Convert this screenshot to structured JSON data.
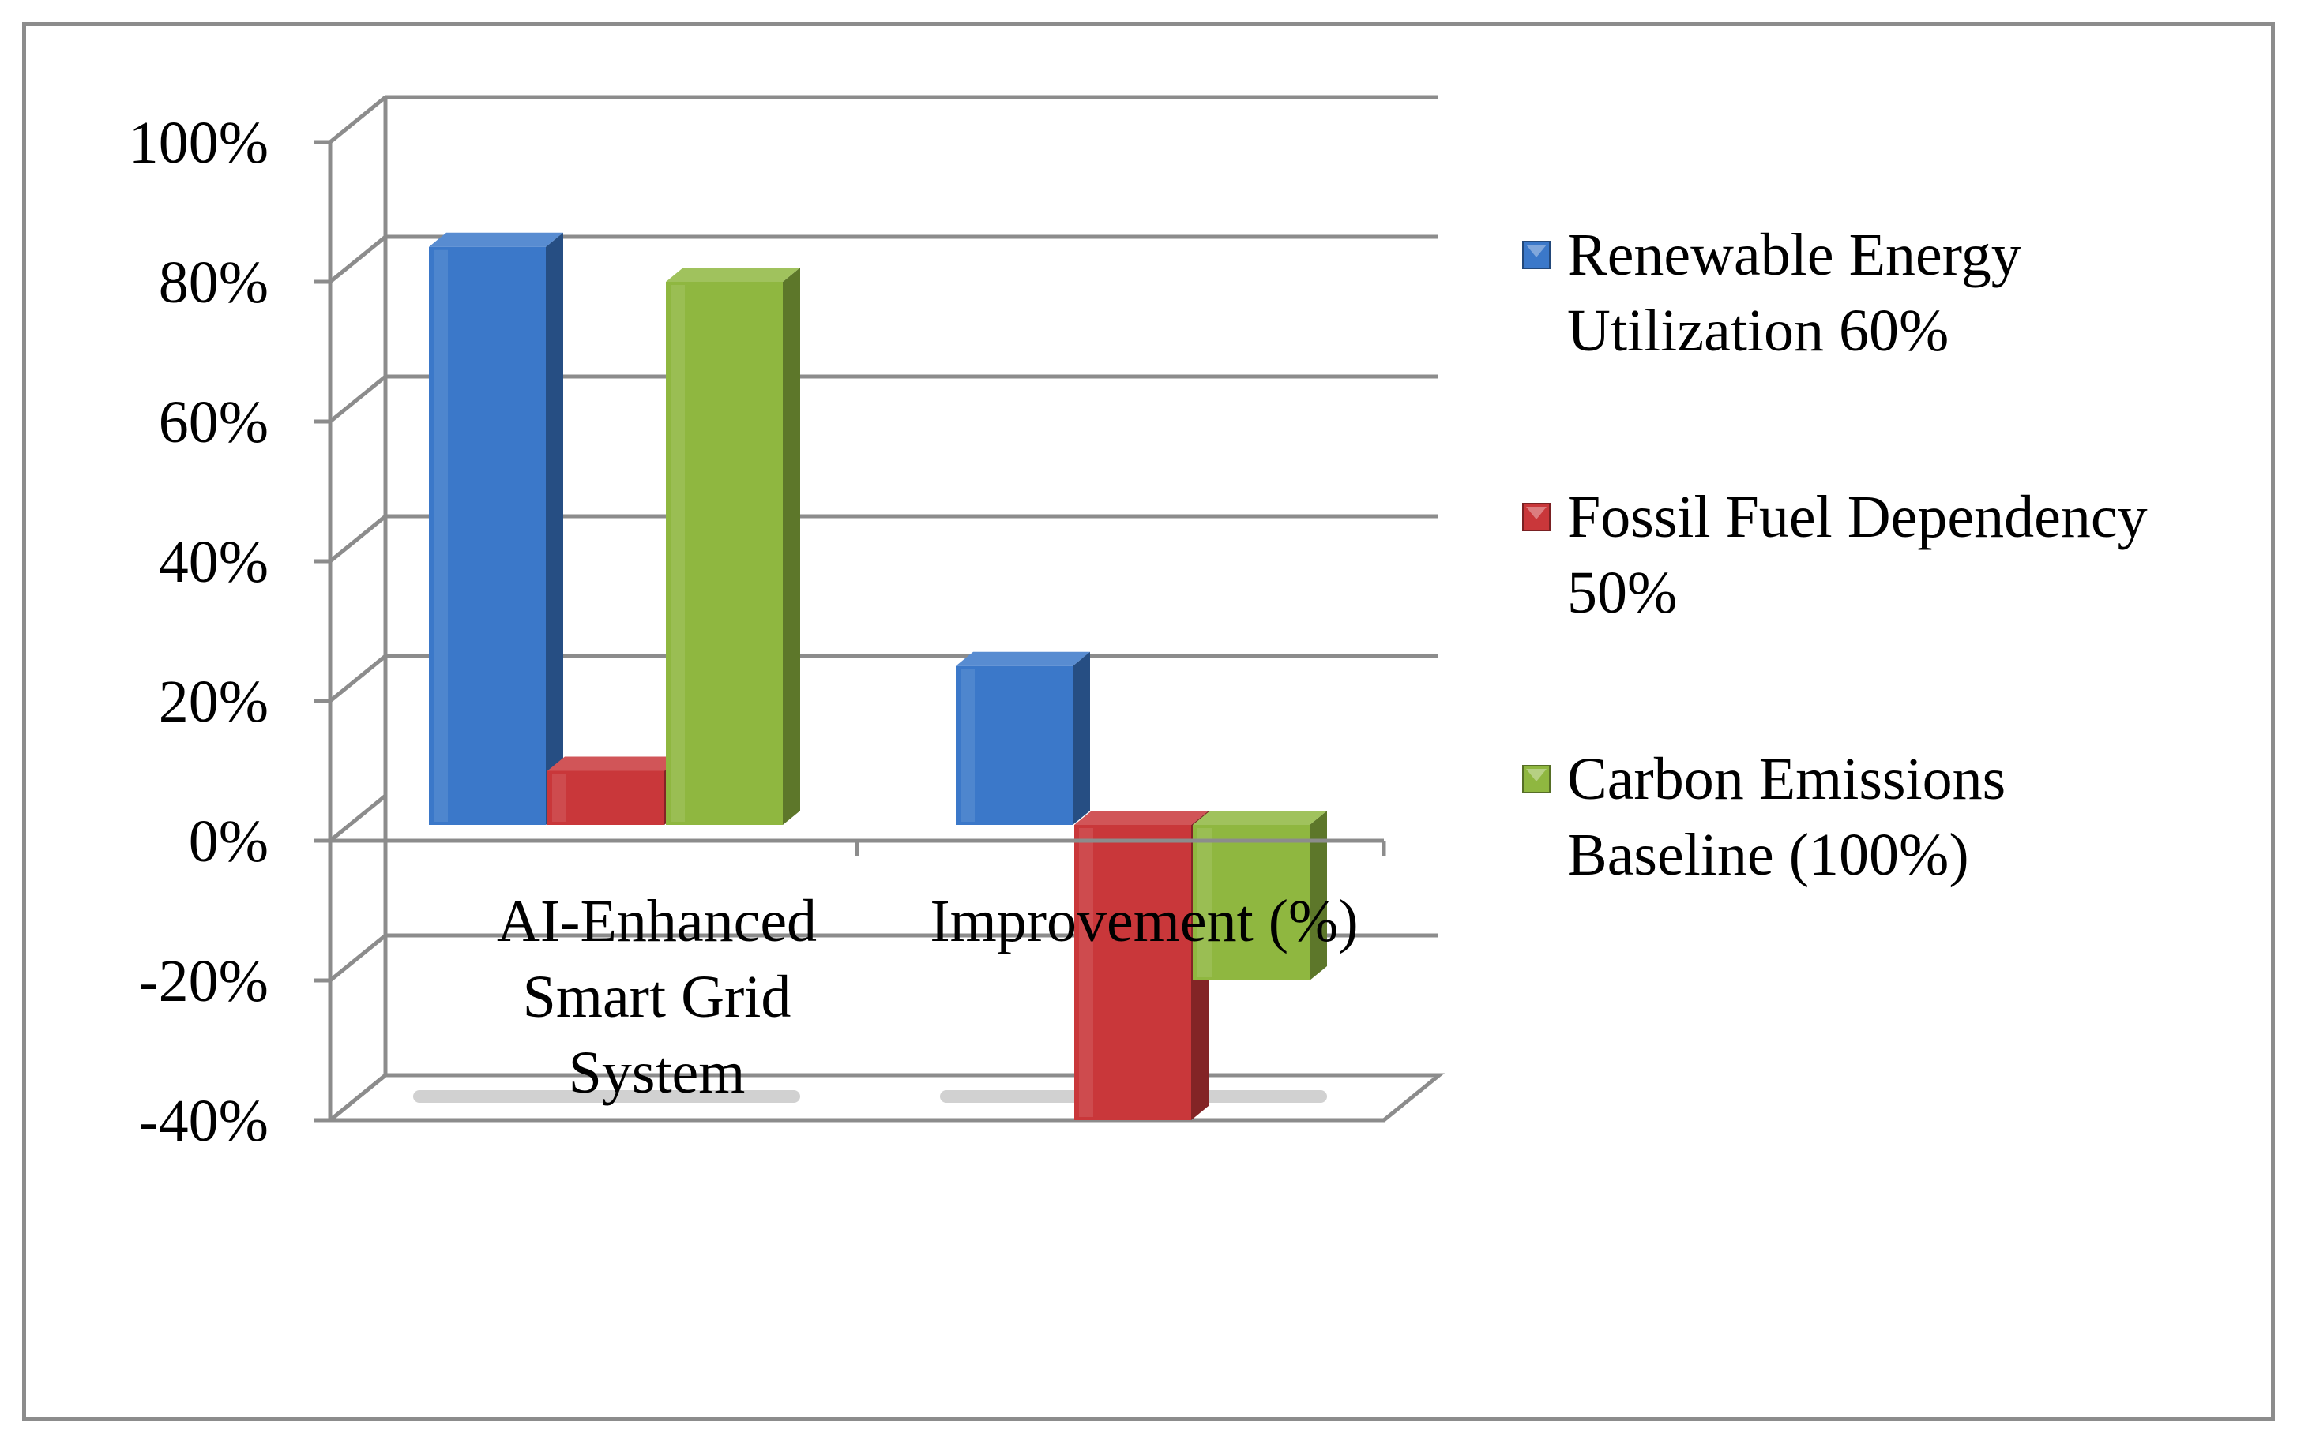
{
  "chart_data": {
    "type": "bar",
    "style": "3d-clustered-column",
    "title": "",
    "xlabel": "",
    "ylabel": "",
    "categories": [
      [
        "AI-Enhanced",
        "Smart Grid",
        "System"
      ],
      [
        "Improvement (%)"
      ]
    ],
    "series": [
      {
        "name": [
          "Renewable Energy",
          "Utilization 60%"
        ],
        "color": "#3b78c9",
        "values": [
          85,
          25
        ]
      },
      {
        "name": [
          "Fossil Fuel Dependency",
          "50%"
        ],
        "color": "#c9373a",
        "values": [
          10,
          -40
        ]
      },
      {
        "name": [
          "Carbon Emissions",
          "Baseline (100%)"
        ],
        "color": "#8fb740",
        "values": [
          80,
          -20
        ]
      }
    ],
    "ylim": [
      -40,
      100
    ],
    "yticks": [
      -40,
      -20,
      0,
      20,
      40,
      60,
      80,
      100
    ],
    "ytick_labels": [
      "-40%",
      "-20%",
      "0%",
      "20%",
      "40%",
      "60%",
      "80%",
      "100%"
    ],
    "grid": true,
    "legend_position": "right"
  }
}
